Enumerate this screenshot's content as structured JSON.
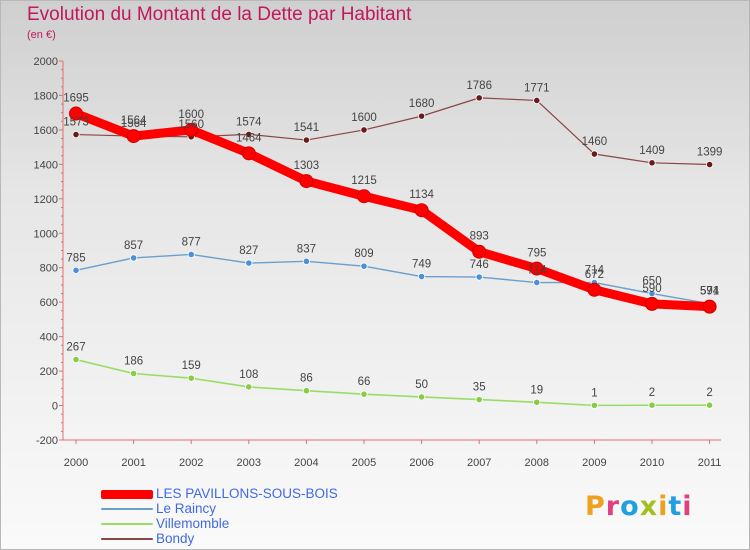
{
  "chart_data": {
    "type": "line",
    "title": "Evolution du Montant de la Dette par Habitant",
    "subtitle": "(en €)",
    "xlabel": "",
    "ylabel": "",
    "ylim": [
      -200,
      2000
    ],
    "yticks": [
      -200,
      0,
      200,
      400,
      600,
      800,
      1000,
      1200,
      1400,
      1600,
      1800,
      2000
    ],
    "grid": false,
    "legend_position": "bottom-left",
    "x": [
      2000,
      2001,
      2002,
      2003,
      2004,
      2005,
      2006,
      2007,
      2008,
      2009,
      2010,
      2011
    ],
    "series": [
      {
        "name": "LES PAVILLONS-SOUS-BOIS",
        "color": "#ff0000",
        "marker_color": "#ff0000",
        "values": [
          1695,
          1564,
          1600,
          1464,
          1303,
          1215,
          1134,
          893,
          795,
          672,
          590,
          574
        ]
      },
      {
        "name": "Le Raincy",
        "color": "#6a9fcc",
        "marker_color": "#4a90d9",
        "values": [
          785,
          857,
          877,
          827,
          837,
          809,
          749,
          746,
          714,
          714,
          650,
          591
        ]
      },
      {
        "name": "Villemomble",
        "color": "#99dd66",
        "marker_color": "#88cc44",
        "values": [
          267,
          186,
          159,
          108,
          86,
          66,
          50,
          35,
          19,
          1,
          2,
          2
        ]
      },
      {
        "name": "Bondy",
        "color": "#8b4545",
        "marker_color": "#6b1a1a",
        "values": [
          1573,
          1564,
          1560,
          1574,
          1541,
          1600,
          1680,
          1786,
          1771,
          1460,
          1409,
          1399
        ]
      }
    ]
  },
  "branding": {
    "logo_text": "Proxiti",
    "logo_colors": [
      "#f0a020",
      "#e04080",
      "#20a0e0",
      "#a0c020",
      "#f0a020",
      "#20a0e0",
      "#e04080"
    ]
  }
}
